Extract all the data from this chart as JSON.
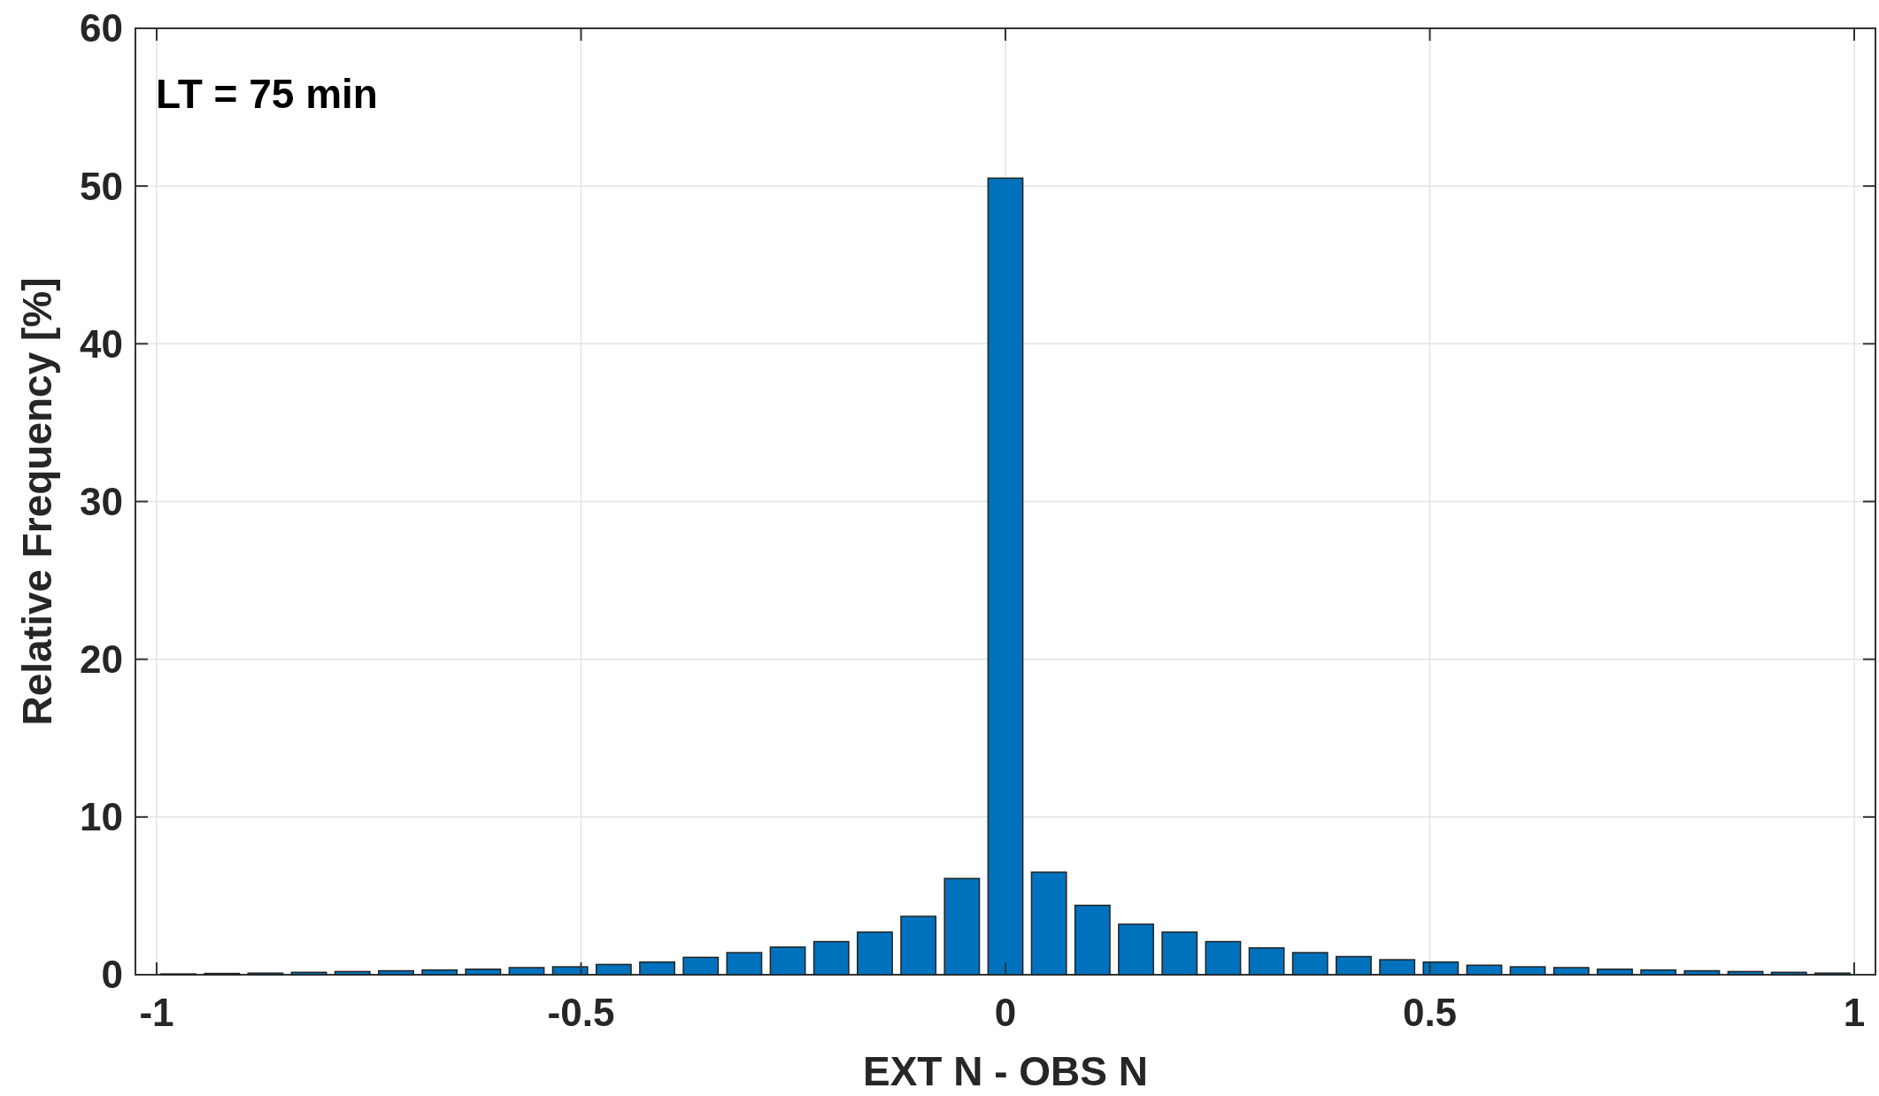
{
  "chart_data": {
    "type": "histogram",
    "xlabel": "EXT N - OBS N",
    "ylabel": "Relative Frequency [%]",
    "annotations": [
      "LT = 75 min"
    ],
    "bins": [
      -1,
      -0.9487,
      -0.8974,
      -0.8462,
      -0.7949,
      -0.7436,
      -0.6923,
      -0.641,
      -0.5897,
      -0.5385,
      -0.4872,
      -0.4359,
      -0.3846,
      -0.3333,
      -0.2821,
      -0.2308,
      -0.1795,
      -0.1282,
      -0.0769,
      -0.0256,
      0.0256,
      0.0769,
      0.1282,
      0.1795,
      0.2308,
      0.2821,
      0.3333,
      0.3846,
      0.4359,
      0.4872,
      0.5385,
      0.5897,
      0.641,
      0.6923,
      0.7436,
      0.7949,
      0.8462,
      0.8974,
      0.9487,
      1
    ],
    "values": [
      0.05,
      0.08,
      0.1,
      0.15,
      0.2,
      0.25,
      0.3,
      0.35,
      0.45,
      0.5,
      0.65,
      0.8,
      1.1,
      1.4,
      1.75,
      2.1,
      2.7,
      3.7,
      6.1,
      50.5,
      6.5,
      4.4,
      3.2,
      2.7,
      2.1,
      1.7,
      1.4,
      1.15,
      0.95,
      0.8,
      0.6,
      0.5,
      0.45,
      0.35,
      0.3,
      0.25,
      0.2,
      0.15,
      0.1
    ],
    "color": "#0072bd",
    "xlim": [
      -1.025,
      1.025
    ],
    "ylim": [
      0,
      60
    ],
    "xticks": [
      -1,
      {
        "value": -0.5,
        "label": "-0.5"
      },
      0,
      {
        "value": 0.5,
        "label": "0.5"
      },
      1
    ],
    "yticks": [
      0,
      10,
      20,
      30,
      40,
      50,
      60
    ],
    "grid": true
  }
}
